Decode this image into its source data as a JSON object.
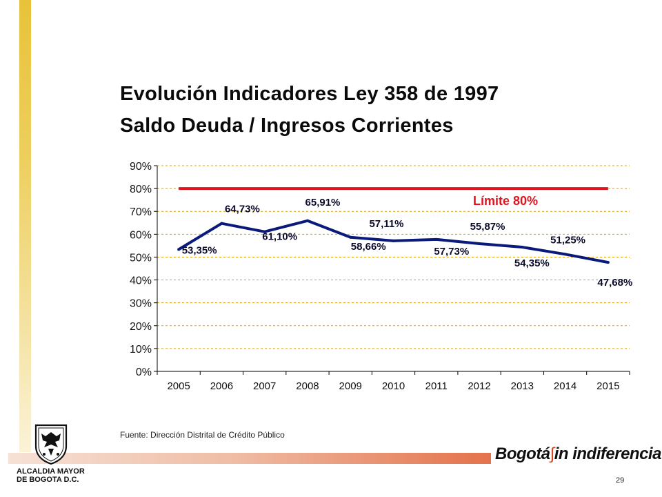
{
  "title": {
    "line1": "Evolución Indicadores Ley 358 de 1997",
    "line2": "Saldo Deuda / Ingresos Corrientes"
  },
  "chart_data": {
    "type": "line",
    "title": "",
    "xlabel": "",
    "ylabel": "",
    "categories": [
      "2005",
      "2006",
      "2007",
      "2008",
      "2009",
      "2010",
      "2011",
      "2012",
      "2013",
      "2014",
      "2015"
    ],
    "yticks": [
      "0%",
      "10%",
      "20%",
      "30%",
      "40%",
      "50%",
      "60%",
      "70%",
      "80%",
      "90%"
    ],
    "ylim": [
      0,
      90
    ],
    "grid": true,
    "series": [
      {
        "name": "",
        "color": "#0a1a7a",
        "values": [
          53.35,
          64.73,
          61.1,
          65.91,
          58.66,
          57.11,
          57.73,
          55.87,
          54.35,
          51.25,
          47.68
        ],
        "labels": [
          "53,35%",
          "64,73%",
          "61,10%",
          "65,91%",
          "58,66%",
          "57,11%",
          "57,73%",
          "55,87%",
          "54,35%",
          "51,25%",
          "47,68%"
        ]
      },
      {
        "name": "Límite 80%",
        "color": "#e0141e",
        "values": [
          80,
          80,
          80,
          80,
          80,
          80,
          80,
          80,
          80,
          80,
          80
        ]
      }
    ],
    "annotation": "Límite 80%"
  },
  "source": "Fuente: Dirección Distrital de Crédito Público",
  "footer": {
    "org_line1": "ALCALDIA MAYOR",
    "org_line2": "DE BOGOTA D.C.",
    "brand_left": "Bogotá",
    "brand_right": "in indiferencia",
    "page_number": "29"
  },
  "colors": {
    "accent_yellow": "#e8c23a",
    "footer_red": "#d9461c",
    "grid": "#d4a017"
  }
}
